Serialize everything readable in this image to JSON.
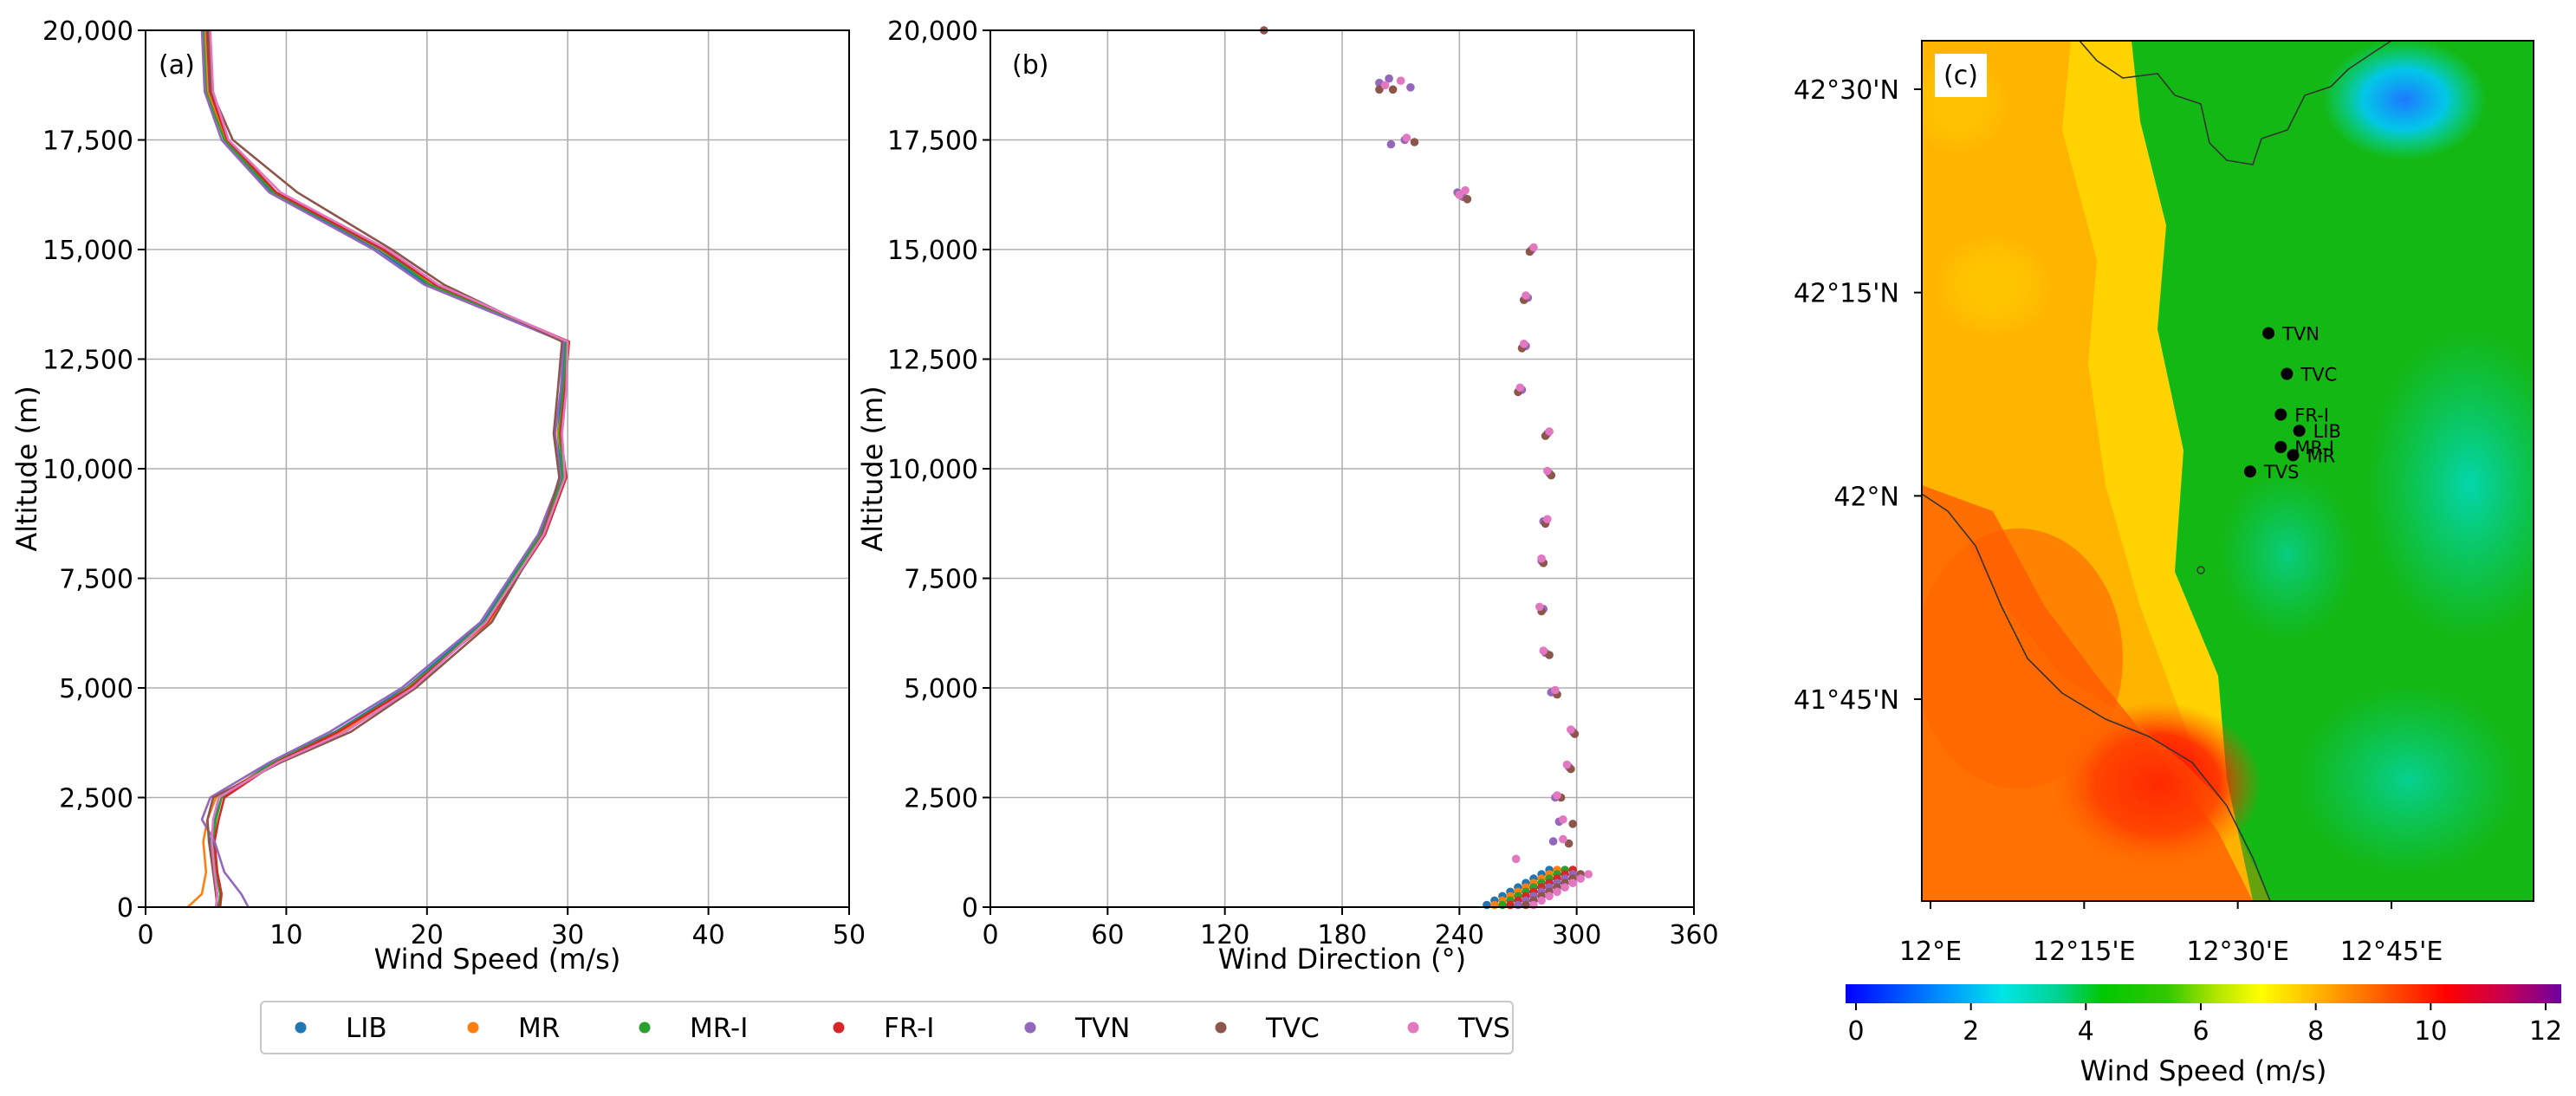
{
  "chart_data": [
    {
      "panel_label": "(a)",
      "type": "line",
      "xlabel": "Wind Speed (m/s)",
      "ylabel": "Altitude (m)",
      "xlim": [
        0,
        50
      ],
      "ylim": [
        0,
        20000
      ],
      "xticks": [
        0,
        10,
        20,
        30,
        40,
        50
      ],
      "xtick_labels": [
        "0",
        "10",
        "20",
        "30",
        "40",
        "50"
      ],
      "yticks": [
        0,
        2500,
        5000,
        7500,
        10000,
        12500,
        15000,
        17500,
        20000
      ],
      "ytick_labels": [
        "0",
        "2,500",
        "5,000",
        "7,500",
        "10,000",
        "12,500",
        "15,000",
        "17,500",
        "20,000"
      ],
      "grid": true,
      "series": [
        {
          "name": "LIB",
          "color": "#1f77b4",
          "x": [
            5.0,
            5.1,
            4.8,
            4.6,
            4.9,
            5.2,
            9.0,
            13.5,
            18.5,
            24.0,
            28.0,
            29.6,
            29.3,
            29.6,
            29.8,
            20.0,
            16.5,
            9.0,
            5.6,
            4.5,
            4.3
          ],
          "y": [
            0,
            300,
            800,
            1500,
            2000,
            2500,
            3300,
            4000,
            5000,
            6500,
            8500,
            9800,
            10800,
            11800,
            12900,
            14200,
            15000,
            16300,
            17500,
            18600,
            20000
          ]
        },
        {
          "name": "MR",
          "color": "#ff7f0e",
          "x": [
            3.0,
            4.0,
            4.3,
            4.1,
            4.4,
            5.0,
            9.2,
            14.0,
            18.6,
            24.4,
            28.3,
            29.8,
            29.3,
            29.8,
            30.0,
            20.4,
            16.7,
            9.2,
            5.7,
            4.4,
            4.2
          ],
          "y": [
            0,
            300,
            800,
            1500,
            2000,
            2500,
            3300,
            4000,
            5000,
            6500,
            8500,
            9800,
            10800,
            11800,
            12900,
            14200,
            15000,
            16300,
            17500,
            18600,
            20000
          ]
        },
        {
          "name": "MR-I",
          "color": "#2ca02c",
          "x": [
            5.2,
            5.3,
            5.0,
            4.8,
            5.0,
            5.4,
            9.1,
            13.6,
            18.7,
            24.1,
            28.1,
            29.7,
            29.4,
            29.7,
            29.9,
            20.2,
            16.8,
            9.1,
            5.6,
            4.3,
            4.1
          ],
          "y": [
            0,
            300,
            800,
            1500,
            2000,
            2500,
            3300,
            4000,
            5000,
            6500,
            8500,
            9800,
            10800,
            11800,
            12900,
            14200,
            15000,
            16300,
            17500,
            18600,
            20000
          ]
        },
        {
          "name": "FR-I",
          "color": "#d62728",
          "x": [
            5.3,
            5.4,
            5.1,
            4.9,
            5.2,
            5.6,
            9.3,
            13.7,
            18.8,
            24.3,
            28.4,
            29.9,
            29.5,
            29.8,
            30.1,
            20.6,
            16.9,
            9.3,
            5.8,
            4.6,
            4.4
          ],
          "y": [
            0,
            300,
            800,
            1500,
            2000,
            2500,
            3300,
            4000,
            5000,
            6500,
            8500,
            9800,
            10800,
            11800,
            12900,
            14200,
            15000,
            16300,
            17500,
            18600,
            20000
          ]
        },
        {
          "name": "TVN",
          "color": "#9467bd",
          "x": [
            7.3,
            6.8,
            5.6,
            4.9,
            4.0,
            4.6,
            8.8,
            13.1,
            18.2,
            23.8,
            27.9,
            29.5,
            29.1,
            29.5,
            29.7,
            19.8,
            16.2,
            8.8,
            5.4,
            4.2,
            4.0
          ],
          "y": [
            0,
            300,
            800,
            1500,
            2000,
            2500,
            3300,
            4000,
            5000,
            6500,
            8500,
            9800,
            10800,
            11800,
            12900,
            14200,
            15000,
            16300,
            17500,
            18600,
            20000
          ]
        },
        {
          "name": "TVC",
          "color": "#8c564b",
          "x": [
            5.1,
            5.0,
            4.8,
            4.5,
            4.4,
            4.8,
            9.6,
            14.6,
            19.2,
            24.6,
            28.2,
            29.4,
            29.0,
            29.3,
            29.6,
            21.2,
            17.5,
            10.8,
            6.2,
            4.7,
            4.5
          ],
          "y": [
            0,
            300,
            800,
            1500,
            2000,
            2500,
            3300,
            4000,
            5000,
            6500,
            8500,
            9800,
            10800,
            11800,
            12900,
            14200,
            15000,
            16300,
            17500,
            18600,
            20000
          ]
        },
        {
          "name": "TVS",
          "color": "#e377c2",
          "x": [
            5.0,
            5.1,
            4.9,
            4.7,
            4.8,
            5.2,
            9.4,
            14.2,
            19.0,
            24.2,
            28.3,
            29.8,
            29.6,
            29.9,
            30.0,
            20.8,
            17.2,
            9.6,
            5.9,
            4.8,
            4.6
          ],
          "y": [
            0,
            300,
            800,
            1500,
            2000,
            2500,
            3300,
            4000,
            5000,
            6500,
            8500,
            9800,
            10800,
            11800,
            12900,
            14200,
            15000,
            16300,
            17500,
            18600,
            20000
          ]
        }
      ]
    },
    {
      "panel_label": "(b)",
      "type": "scatter",
      "xlabel": "Wind Direction (°)",
      "ylabel": "Altitude (m)",
      "xlim": [
        0,
        360
      ],
      "ylim": [
        0,
        20000
      ],
      "xticks": [
        0,
        60,
        120,
        180,
        240,
        300,
        360
      ],
      "xtick_labels": [
        "0",
        "60",
        "120",
        "180",
        "240",
        "300",
        "360"
      ],
      "yticks": [
        0,
        2500,
        5000,
        7500,
        10000,
        12500,
        15000,
        17500,
        20000
      ],
      "ytick_labels": [
        "0",
        "2,500",
        "5,000",
        "7,500",
        "10,000",
        "12,500",
        "15,000",
        "17,500",
        "20,000"
      ],
      "grid": true,
      "series": [
        {
          "name": "LIB",
          "color": "#1f77b4",
          "x": [
            254,
            258,
            262,
            266,
            270,
            274,
            278,
            282,
            286
          ],
          "y": [
            50,
            150,
            250,
            350,
            450,
            550,
            650,
            750,
            850
          ]
        },
        {
          "name": "MR",
          "color": "#ff7f0e",
          "x": [
            258,
            262,
            266,
            270,
            274,
            278,
            282,
            286,
            290
          ],
          "y": [
            50,
            150,
            250,
            350,
            450,
            550,
            650,
            750,
            850
          ]
        },
        {
          "name": "MR-I",
          "color": "#2ca02c",
          "x": [
            262,
            266,
            270,
            274,
            278,
            282,
            286,
            290,
            294
          ],
          "y": [
            50,
            150,
            250,
            350,
            450,
            550,
            650,
            750,
            850
          ]
        },
        {
          "name": "FR-I",
          "color": "#d62728",
          "x": [
            266,
            270,
            274,
            278,
            282,
            286,
            290,
            294,
            298
          ],
          "y": [
            50,
            150,
            250,
            350,
            450,
            550,
            650,
            750,
            850
          ]
        },
        {
          "name": "TVN",
          "color": "#9467bd",
          "x": [
            270,
            274,
            278,
            282,
            286,
            290,
            294,
            298,
            288,
            291,
            289,
            296,
            298,
            287,
            284,
            283,
            282,
            283,
            286,
            285,
            272,
            274,
            275,
            277,
            242,
            239,
            205,
            212,
            215,
            199,
            204
          ],
          "y": [
            50,
            150,
            250,
            350,
            450,
            550,
            650,
            750,
            1500,
            1950,
            2500,
            3200,
            4000,
            4900,
            5800,
            6800,
            7900,
            8800,
            9900,
            10800,
            11800,
            12800,
            13900,
            15000,
            16200,
            16300,
            17400,
            17500,
            18700,
            18800,
            18900
          ]
        },
        {
          "name": "TVC",
          "color": "#8c564b",
          "x": [
            274,
            278,
            282,
            286,
            290,
            294,
            298,
            302,
            296,
            298,
            292,
            297,
            299,
            290,
            286,
            282,
            283,
            284,
            287,
            284,
            270,
            272,
            273,
            276,
            244,
            240,
            217,
            199,
            206,
            140
          ],
          "y": [
            50,
            150,
            250,
            350,
            450,
            550,
            650,
            750,
            1450,
            1900,
            2500,
            3150,
            3950,
            4850,
            5750,
            6750,
            7850,
            8750,
            9850,
            10750,
            11750,
            12750,
            13850,
            14950,
            16150,
            16250,
            17450,
            18650,
            18650,
            20000
          ]
        },
        {
          "name": "TVS",
          "color": "#e377c2",
          "x": [
            278,
            282,
            286,
            290,
            294,
            298,
            302,
            306,
            293,
            293,
            290,
            295,
            297,
            289,
            283,
            281,
            282,
            285,
            285,
            286,
            271,
            273,
            274,
            278,
            240,
            243,
            213,
            202,
            210,
            269
          ],
          "y": [
            50,
            150,
            250,
            350,
            450,
            550,
            650,
            750,
            1550,
            2000,
            2550,
            3250,
            4050,
            4950,
            5850,
            6850,
            7950,
            8850,
            9950,
            10850,
            11850,
            12850,
            13950,
            15050,
            16250,
            16350,
            17550,
            18750,
            18850,
            1100
          ]
        }
      ]
    },
    {
      "panel_label": "(c)",
      "type": "heatmap",
      "description_axis": "map",
      "lat_labels": [
        "42°30'N",
        "42°15'N",
        "42°N",
        "41°45'N"
      ],
      "lon_labels": [
        "12°E",
        "12°15'E",
        "12°30'E",
        "12°45'E"
      ],
      "sites": [
        {
          "name": "TVN",
          "lat": 42.2,
          "lon": 12.55
        },
        {
          "name": "TVC",
          "lat": 42.15,
          "lon": 12.58
        },
        {
          "name": "FR-I",
          "lat": 42.1,
          "lon": 12.57
        },
        {
          "name": "LIB",
          "lat": 42.08,
          "lon": 12.6
        },
        {
          "name": "MR-I",
          "lat": 42.06,
          "lon": 12.57
        },
        {
          "name": "MR",
          "lat": 42.05,
          "lon": 12.59
        },
        {
          "name": "TVS",
          "lat": 42.03,
          "lon": 12.52
        }
      ],
      "colorbar": {
        "label": "Wind Speed (m/s)",
        "range": [
          0,
          12
        ],
        "ticks": [
          0,
          2,
          4,
          6,
          8,
          10,
          12
        ],
        "tick_labels": [
          "0",
          "2",
          "4",
          "6",
          "8",
          "10",
          "12"
        ]
      }
    }
  ],
  "legend": {
    "entries": [
      {
        "name": "LIB",
        "color": "#1f77b4"
      },
      {
        "name": "MR",
        "color": "#ff7f0e"
      },
      {
        "name": "MR-I",
        "color": "#2ca02c"
      },
      {
        "name": "FR-I",
        "color": "#d62728"
      },
      {
        "name": "TVN",
        "color": "#9467bd"
      },
      {
        "name": "TVC",
        "color": "#8c564b"
      },
      {
        "name": "TVS",
        "color": "#e377c2"
      }
    ]
  }
}
